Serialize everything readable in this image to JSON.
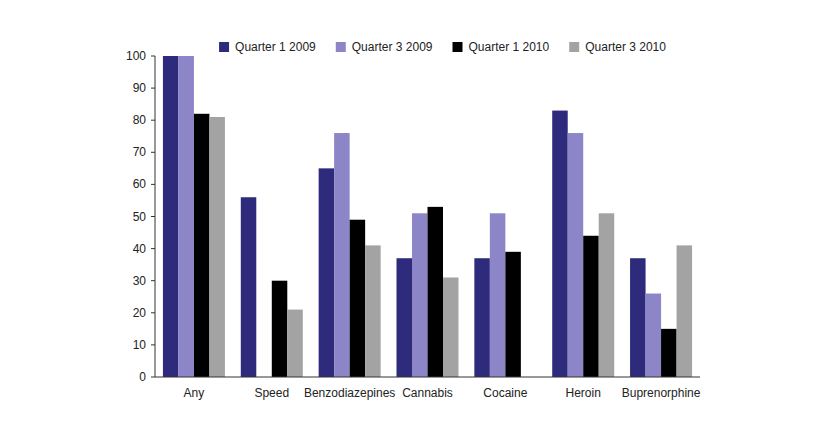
{
  "chart_data": {
    "type": "bar",
    "categories": [
      "Any",
      "Speed",
      "Benzodiazepines",
      "Cannabis",
      "Cocaine",
      "Heroin",
      "Buprenorphine"
    ],
    "series": [
      {
        "name": "Quarter 1 2009",
        "color": "#2e2a7c",
        "values": [
          100,
          56,
          65,
          37,
          37,
          83,
          37
        ]
      },
      {
        "name": "Quarter 3 2009",
        "color": "#8c86c8",
        "values": [
          100,
          0,
          76,
          51,
          51,
          76,
          26
        ]
      },
      {
        "name": "Quarter 1 2010",
        "color": "#000000",
        "values": [
          82,
          30,
          49,
          53,
          39,
          44,
          15
        ]
      },
      {
        "name": "Quarter 3 2010",
        "color": "#a3a3a3",
        "values": [
          81,
          21,
          41,
          31,
          0,
          51,
          41
        ]
      }
    ],
    "ylim": [
      0,
      100
    ],
    "yticks": [
      0,
      10,
      20,
      30,
      40,
      50,
      60,
      70,
      80,
      90,
      100
    ],
    "grid": false,
    "legend": "top"
  }
}
